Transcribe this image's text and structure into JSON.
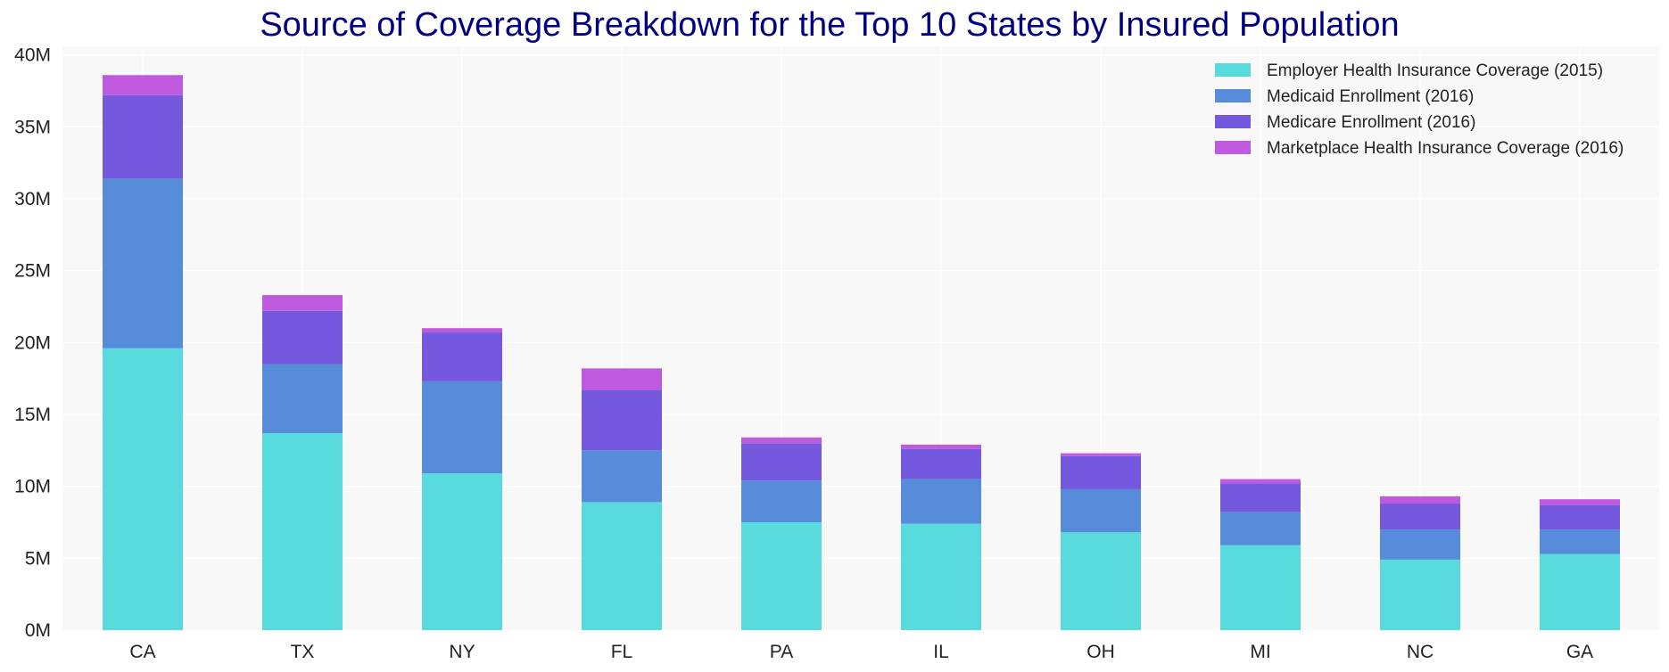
{
  "chart_data": {
    "type": "bar",
    "stacked": true,
    "title": "Source of Coverage Breakdown for the Top 10 States by Insured Population",
    "xlabel": "",
    "ylabel": "",
    "categories": [
      "CA",
      "TX",
      "NY",
      "FL",
      "PA",
      "IL",
      "OH",
      "MI",
      "NC",
      "GA"
    ],
    "ylim": [
      0,
      40600000
    ],
    "yticks": [
      0,
      5000000,
      10000000,
      15000000,
      20000000,
      25000000,
      30000000,
      35000000,
      40000000
    ],
    "ytick_labels": [
      "0M",
      "5M",
      "10M",
      "15M",
      "20M",
      "25M",
      "30M",
      "35M",
      "40M"
    ],
    "grid": true,
    "legend_position": "top-right",
    "series": [
      {
        "name": "Employer Health Insurance Coverage (2015)",
        "color": "#59DADC",
        "values": [
          19600000,
          13700000,
          10900000,
          8900000,
          7500000,
          7400000,
          6800000,
          5900000,
          4900000,
          5300000
        ]
      },
      {
        "name": "Medicaid Enrollment (2016)",
        "color": "#578CDB",
        "values": [
          11800000,
          4800000,
          6400000,
          3600000,
          2900000,
          3100000,
          3000000,
          2300000,
          2100000,
          1700000
        ]
      },
      {
        "name": "Medicare Enrollment (2016)",
        "color": "#7459DF",
        "values": [
          5800000,
          3700000,
          3400000,
          4200000,
          2600000,
          2100000,
          2300000,
          2000000,
          1800000,
          1700000
        ]
      },
      {
        "name": "Marketplace Health Insurance Coverage (2016)",
        "color": "#BF59DE",
        "values": [
          1400000,
          1100000,
          300000,
          1500000,
          400000,
          300000,
          200000,
          300000,
          500000,
          400000
        ]
      }
    ],
    "colors": {
      "title": "#000080",
      "plot_background": "#F8F8F8",
      "grid": "#FFFFFF"
    }
  }
}
